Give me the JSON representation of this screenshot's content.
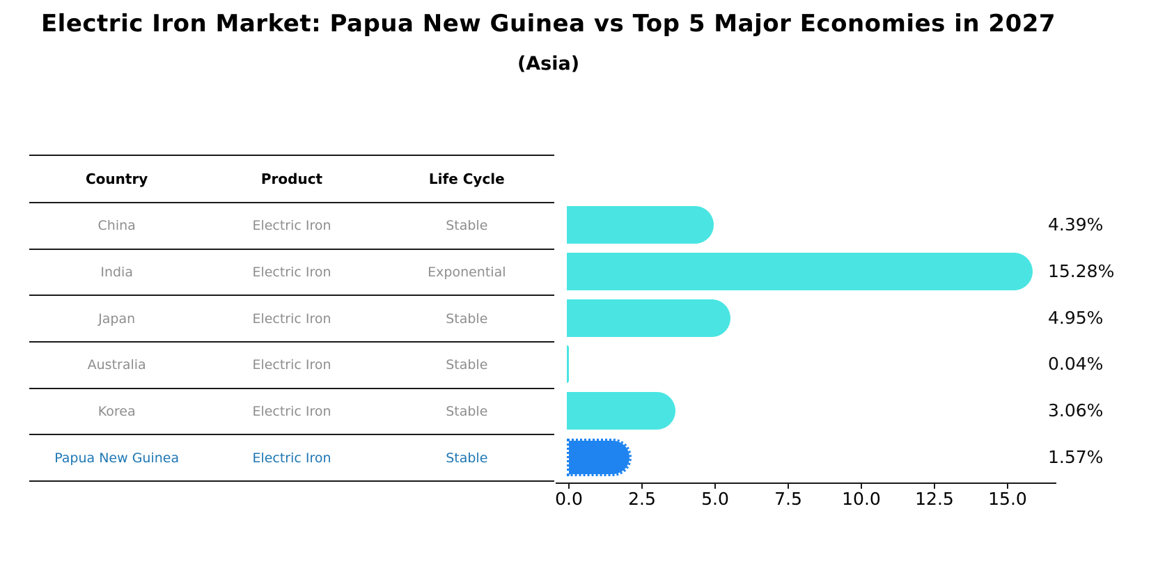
{
  "title": "Electric Iron Market: Papua New Guinea vs Top 5 Major Economies in 2027",
  "subtitle": "(Asia)",
  "table": {
    "headers": [
      "Country",
      "Product",
      "Life Cycle"
    ],
    "rows": [
      {
        "country": "China",
        "product": "Electric Iron",
        "life_cycle": "Stable",
        "highlight": false
      },
      {
        "country": "India",
        "product": "Electric Iron",
        "life_cycle": "Exponential",
        "highlight": false
      },
      {
        "country": "Japan",
        "product": "Electric Iron",
        "life_cycle": "Stable",
        "highlight": false
      },
      {
        "country": "Australia",
        "product": "Electric Iron",
        "life_cycle": "Stable",
        "highlight": false
      },
      {
        "country": "Korea",
        "product": "Electric Iron",
        "life_cycle": "Stable",
        "highlight": false
      },
      {
        "country": "Papua New Guinea",
        "product": "Electric Iron",
        "life_cycle": "Stable",
        "highlight": true
      }
    ]
  },
  "chart_data": {
    "type": "bar",
    "orientation": "horizontal",
    "title": "Electric Iron Market: Papua New Guinea vs Top 5 Major Economies in 2027 (Asia)",
    "categories": [
      "China",
      "India",
      "Japan",
      "Australia",
      "Korea",
      "Papua New Guinea"
    ],
    "values": [
      4.39,
      15.28,
      4.95,
      0.04,
      3.06,
      1.57
    ],
    "value_labels": [
      "4.39%",
      "15.28%",
      "4.95%",
      "0.04%",
      "3.06%",
      "1.57%"
    ],
    "x_ticks": [
      0.0,
      2.5,
      5.0,
      7.5,
      10.0,
      12.5,
      15.0
    ],
    "x_tick_labels": [
      "0.0",
      "2.5",
      "5.0",
      "7.5",
      "10.0",
      "12.5",
      "15.0"
    ],
    "xlim": [
      0,
      16.7
    ],
    "grid": false,
    "legend": false,
    "highlight_index": 5,
    "bar_color": "#4ae5e2",
    "highlight_color": "#1f84f0"
  },
  "colors": {
    "bar": "#4ae5e2",
    "highlight_bar": "#1f84f0",
    "highlight_text": "#1f77b4",
    "table_text": "#8e8e8e",
    "line": "#1a1a1a"
  }
}
